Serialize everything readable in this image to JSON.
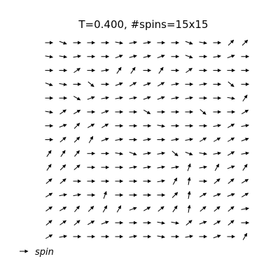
{
  "chart_data": {
    "type": "quiver",
    "title": "T=0.400, #spins=15x15",
    "grid": false,
    "axes_visible": false,
    "legend": {
      "placement": "bottom-left",
      "entries": [
        "spin"
      ]
    },
    "arrow_color": "#000000",
    "grid_size": [
      15,
      15
    ],
    "angle_units": "degrees",
    "row_order": "top-to-bottom",
    "angles": [
      [
        0,
        -20,
        0,
        0,
        0,
        -10,
        10,
        10,
        0,
        0,
        -20,
        -10,
        0,
        45,
        45
      ],
      [
        -10,
        -10,
        10,
        0,
        0,
        20,
        15,
        15,
        20,
        0,
        -20,
        0,
        10,
        20,
        0
      ],
      [
        0,
        0,
        35,
        0,
        10,
        55,
        55,
        0,
        55,
        0,
        35,
        0,
        0,
        0,
        0
      ],
      [
        -20,
        -10,
        0,
        -40,
        0,
        20,
        30,
        20,
        30,
        10,
        0,
        10,
        0,
        -40,
        0
      ],
      [
        0,
        0,
        -30,
        20,
        10,
        10,
        10,
        20,
        20,
        10,
        10,
        0,
        0,
        -10,
        55
      ],
      [
        -10,
        35,
        30,
        0,
        20,
        0,
        0,
        -30,
        0,
        0,
        0,
        -40,
        0,
        0,
        30
      ],
      [
        0,
        20,
        45,
        30,
        30,
        0,
        0,
        0,
        -10,
        0,
        0,
        0,
        10,
        30,
        10
      ],
      [
        0,
        40,
        45,
        60,
        20,
        10,
        0,
        10,
        0,
        10,
        10,
        30,
        30,
        30,
        20
      ],
      [
        55,
        55,
        50,
        0,
        0,
        -10,
        -20,
        10,
        10,
        -40,
        -20,
        -10,
        10,
        30,
        10
      ],
      [
        55,
        45,
        40,
        0,
        0,
        0,
        10,
        10,
        10,
        10,
        70,
        10,
        60,
        20,
        55
      ],
      [
        40,
        40,
        0,
        0,
        0,
        0,
        0,
        0,
        10,
        60,
        80,
        0,
        40,
        40,
        30
      ],
      [
        30,
        10,
        10,
        0,
        70,
        0,
        0,
        0,
        0,
        45,
        80,
        30,
        20,
        20,
        30
      ],
      [
        35,
        30,
        50,
        45,
        60,
        60,
        20,
        30,
        40,
        55,
        80,
        40,
        40,
        40,
        10
      ],
      [
        40,
        35,
        40,
        30,
        20,
        0,
        0,
        0,
        -10,
        -10,
        40,
        20,
        30,
        40,
        0
      ],
      [
        30,
        10,
        0,
        0,
        0,
        0,
        10,
        0,
        -10,
        0,
        10,
        0,
        20,
        0,
        60
      ]
    ]
  }
}
